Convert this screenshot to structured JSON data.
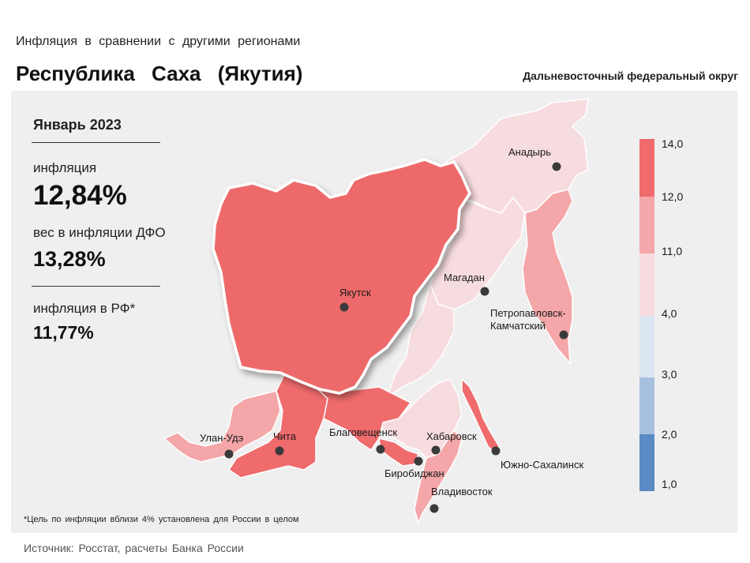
{
  "header": {
    "subtitle": "Инфляция в сравнении с другими регионами",
    "title": "Республика Саха (Якутия)",
    "district": "Дальневосточный федеральный округ"
  },
  "stats": {
    "period": "Январь 2023",
    "inflation_label": "инфляция",
    "inflation_value": "12,84%",
    "weight_label": "вес в инфляции ДФО",
    "weight_value": "13,28%",
    "rf_label": "инфляция в РФ*",
    "rf_value": "11,77%"
  },
  "map": {
    "cities": [
      "Анадырь",
      "Якутск",
      "Магадан",
      "Петропавловск-",
      "Камчатский",
      "Улан-Удэ",
      "Чита",
      "Благовещенск",
      "Хабаровск",
      "Биробиджан",
      "Южно-Сахалинск",
      "Владивосток"
    ],
    "colors": {
      "highlight": "#ee6a6b",
      "high": "#ef6b6c",
      "mid": "#f4a6a8",
      "low": "#f7dcdf",
      "lowest": "#dce6f1"
    }
  },
  "legend": {
    "labels": [
      "14,0",
      "12,0",
      "11,0",
      "4,0",
      "3,0",
      "2,0",
      "1,0"
    ],
    "colors": [
      "#ef6b6c",
      "#f4a6a8",
      "#f7dcdf",
      "#dce6f1",
      "#a8c0df",
      "#5b8ac4"
    ]
  },
  "footer": {
    "footnote": "*Цель по инфляции вблизи 4% установлена для России в целом",
    "source": "Источник: Росстат, расчеты Банка России"
  }
}
